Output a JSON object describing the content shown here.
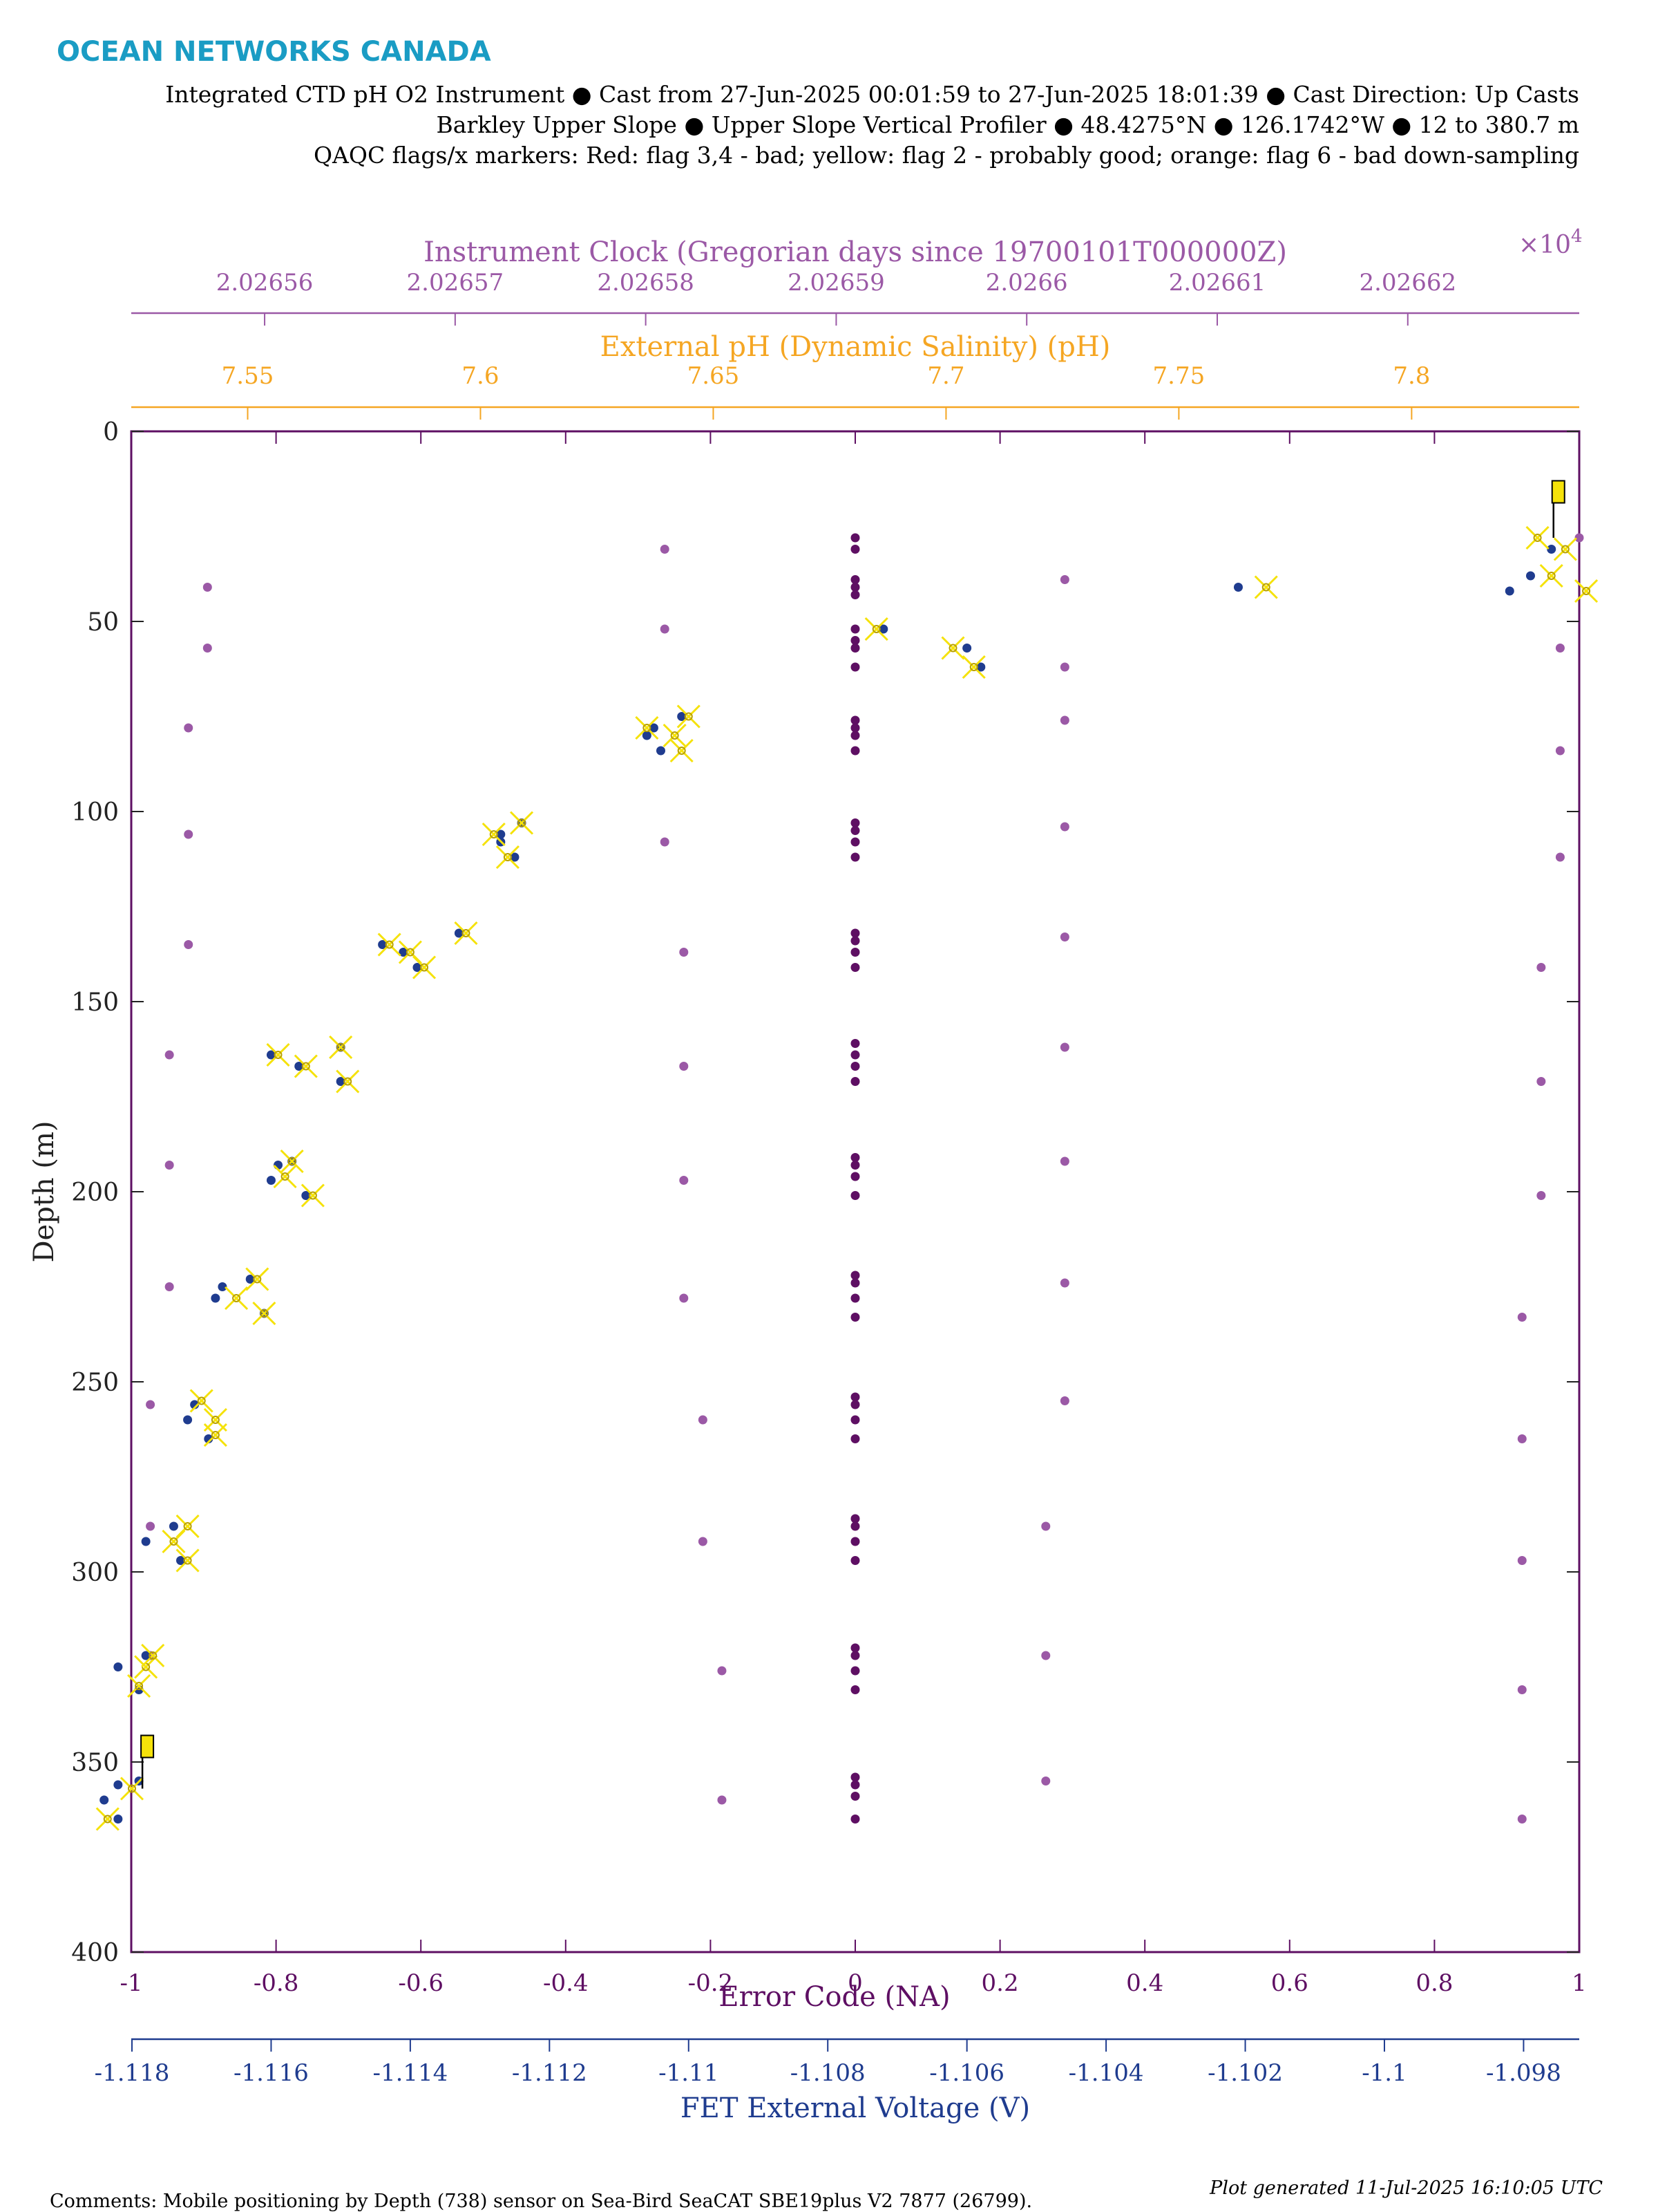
{
  "header": {
    "brand": "OCEAN NETWORKS CANADA",
    "line1": "Integrated CTD pH O2 Instrument ● Cast from 27-Jun-2025 00:01:59 to 27-Jun-2025 18:01:39 ● Cast Direction: Up Casts",
    "line2": "Barkley Upper Slope ● Upper Slope Vertical Profiler ● 48.4275°N ● 126.1742°W ● 12 to 380.7 m",
    "line3": "QAQC flags/x markers: Red: flag 3,4 - bad; yellow: flag 2 - probably good; orange: flag 6 - bad down-sampling"
  },
  "footer": {
    "comments": "Comments: Mobile positioning by Depth (738) sensor on Sea-Bird SeaCAT SBE19plus V2 7877 (26799).",
    "generated": "Plot generated 11-Jul-2025 16:10:05 UTC"
  },
  "colors": {
    "clock": "#9b59a6",
    "ph": "#f5a623",
    "error": "#5e0f63",
    "fet": "#1f3c8f",
    "flag_yellow": "#f5e20a",
    "brand": "#1a9cc4"
  },
  "chart_data": {
    "type": "scatter",
    "y_axis": {
      "label": "Depth (m)",
      "range": [
        0,
        400
      ],
      "reversed": true,
      "ticks": [
        0,
        50,
        100,
        150,
        200,
        250,
        300,
        350,
        400
      ]
    },
    "axes": {
      "clock": {
        "label": "Instrument Clock (Gregorian days since 19700101T000000Z)",
        "multiplier": "×10",
        "multiplier_exp": "4",
        "range": [
          2.026553,
          2.026629
        ],
        "ticks": [
          2.02656,
          2.02657,
          2.02658,
          2.02659,
          2.0266,
          2.02661,
          2.02662
        ],
        "tick_labels": [
          "2.02656",
          "2.02657",
          "2.02658",
          "2.02659",
          "2.0266",
          "2.02661",
          "2.02662"
        ]
      },
      "ph": {
        "label": "External pH (Dynamic Salinity) (pH)",
        "range": [
          7.525,
          7.836
        ],
        "ticks": [
          7.55,
          7.6,
          7.65,
          7.7,
          7.75,
          7.8
        ],
        "tick_labels": [
          "7.55",
          "7.6",
          "7.65",
          "7.7",
          "7.75",
          "7.8"
        ]
      },
      "error": {
        "label": "Error Code (NA)",
        "range": [
          -1,
          1
        ],
        "ticks": [
          -1,
          -0.8,
          -0.6,
          -0.4,
          -0.2,
          0,
          0.2,
          0.4,
          0.6,
          0.8,
          1
        ],
        "tick_labels": [
          "-1",
          "-0.8",
          "-0.6",
          "-0.4",
          "-0.2",
          "0",
          "0.2",
          "0.4",
          "0.6",
          "0.8",
          "1"
        ]
      },
      "fet": {
        "label": "FET External Voltage (V)",
        "range": [
          -1.11801,
          -1.0972
        ],
        "ticks": [
          -1.118,
          -1.116,
          -1.114,
          -1.112,
          -1.11,
          -1.108,
          -1.106,
          -1.104,
          -1.102,
          -1.1,
          -1.098
        ],
        "tick_labels": [
          "-1.118",
          "-1.116",
          "-1.114",
          "-1.112",
          "-1.11",
          "-1.108",
          "-1.106",
          "-1.104",
          "-1.102",
          "-1.1",
          "-1.098"
        ]
      }
    },
    "series": [
      {
        "name": "Instrument Clock",
        "axis": "clock",
        "points": [
          [
            2.026554,
            322
          ],
          [
            2.026554,
            288
          ],
          [
            2.026554,
            256
          ],
          [
            2.026555,
            225
          ],
          [
            2.026555,
            193
          ],
          [
            2.026555,
            164
          ],
          [
            2.026556,
            135
          ],
          [
            2.026556,
            106
          ],
          [
            2.026556,
            78
          ],
          [
            2.026557,
            57
          ],
          [
            2.026557,
            41
          ],
          [
            2.026581,
            31
          ],
          [
            2.026581,
            52
          ],
          [
            2.026581,
            108
          ],
          [
            2.026582,
            137
          ],
          [
            2.026582,
            167
          ],
          [
            2.026582,
            197
          ],
          [
            2.026582,
            228
          ],
          [
            2.026583,
            260
          ],
          [
            2.026583,
            292
          ],
          [
            2.026584,
            326
          ],
          [
            2.026584,
            360
          ],
          [
            2.026602,
            39
          ],
          [
            2.026602,
            62
          ],
          [
            2.026602,
            76
          ],
          [
            2.026602,
            104
          ],
          [
            2.026602,
            133
          ],
          [
            2.026602,
            162
          ],
          [
            2.026602,
            192
          ],
          [
            2.026602,
            224
          ],
          [
            2.026602,
            255
          ],
          [
            2.026601,
            288
          ],
          [
            2.026601,
            322
          ],
          [
            2.026601,
            355
          ],
          [
            2.026629,
            28
          ],
          [
            2.026628,
            57
          ],
          [
            2.026628,
            84
          ],
          [
            2.026628,
            112
          ],
          [
            2.026627,
            141
          ],
          [
            2.026627,
            171
          ],
          [
            2.026627,
            201
          ],
          [
            2.026626,
            233
          ],
          [
            2.026626,
            265
          ],
          [
            2.026626,
            297
          ],
          [
            2.026626,
            331
          ],
          [
            2.026626,
            365
          ]
        ]
      },
      {
        "name": "Error Code",
        "axis": "error",
        "points": [
          [
            0,
            28
          ],
          [
            0,
            31
          ],
          [
            0,
            39
          ],
          [
            0,
            41
          ],
          [
            0,
            43
          ],
          [
            0,
            52
          ],
          [
            0,
            55
          ],
          [
            0,
            57
          ],
          [
            0,
            62
          ],
          [
            0,
            76
          ],
          [
            0,
            78
          ],
          [
            0,
            80
          ],
          [
            0,
            84
          ],
          [
            0,
            103
          ],
          [
            0,
            105
          ],
          [
            0,
            108
          ],
          [
            0,
            112
          ],
          [
            0,
            132
          ],
          [
            0,
            134
          ],
          [
            0,
            137
          ],
          [
            0,
            141
          ],
          [
            0,
            161
          ],
          [
            0,
            164
          ],
          [
            0,
            167
          ],
          [
            0,
            171
          ],
          [
            0,
            191
          ],
          [
            0,
            193
          ],
          [
            0,
            196
          ],
          [
            0,
            201
          ],
          [
            0,
            222
          ],
          [
            0,
            224
          ],
          [
            0,
            228
          ],
          [
            0,
            233
          ],
          [
            0,
            254
          ],
          [
            0,
            256
          ],
          [
            0,
            260
          ],
          [
            0,
            265
          ],
          [
            0,
            286
          ],
          [
            0,
            288
          ],
          [
            0,
            292
          ],
          [
            0,
            297
          ],
          [
            0,
            320
          ],
          [
            0,
            322
          ],
          [
            0,
            326
          ],
          [
            0,
            331
          ],
          [
            0,
            354
          ],
          [
            0,
            356
          ],
          [
            0,
            359
          ],
          [
            0,
            365
          ]
        ]
      },
      {
        "name": "FET External Voltage",
        "axis": "fet",
        "points": [
          [
            -1.1184,
            360
          ],
          [
            -1.1182,
            356
          ],
          [
            -1.1182,
            365
          ],
          [
            -1.1179,
            355
          ],
          [
            -1.1182,
            325
          ],
          [
            -1.1178,
            322
          ],
          [
            -1.1179,
            331
          ],
          [
            -1.1174,
            288
          ],
          [
            -1.1178,
            292
          ],
          [
            -1.1173,
            297
          ],
          [
            -1.1171,
            256
          ],
          [
            -1.1172,
            260
          ],
          [
            -1.1169,
            265
          ],
          [
            -1.1167,
            225
          ],
          [
            -1.1163,
            223
          ],
          [
            -1.1168,
            228
          ],
          [
            -1.1161,
            232
          ],
          [
            -1.1159,
            193
          ],
          [
            -1.116,
            197
          ],
          [
            -1.1157,
            192
          ],
          [
            -1.1155,
            201
          ],
          [
            -1.116,
            164
          ],
          [
            -1.1156,
            167
          ],
          [
            -1.115,
            162
          ],
          [
            -1.115,
            171
          ],
          [
            -1.1144,
            135
          ],
          [
            -1.1141,
            137
          ],
          [
            -1.1139,
            141
          ],
          [
            -1.1133,
            132
          ],
          [
            -1.1127,
            106
          ],
          [
            -1.1127,
            108
          ],
          [
            -1.1125,
            112
          ],
          [
            -1.1124,
            103
          ],
          [
            -1.1106,
            80
          ],
          [
            -1.1105,
            78
          ],
          [
            -1.1104,
            84
          ],
          [
            -1.1101,
            75
          ],
          [
            -1.1072,
            52
          ],
          [
            -1.106,
            57
          ],
          [
            -1.1058,
            62
          ],
          [
            -1.1021,
            41
          ],
          [
            -1.0982,
            42
          ],
          [
            -1.0979,
            38
          ],
          [
            -1.0976,
            31
          ]
        ]
      }
    ],
    "flags": {
      "type": "flag 2 - probably good",
      "color": "yellow",
      "markers_fet": [
        [
          -1.11835,
          365
        ],
        [
          -1.118,
          357
        ],
        [
          -1.1179,
          330
        ],
        [
          -1.1178,
          325
        ],
        [
          -1.1177,
          322
        ],
        [
          -1.1172,
          288
        ],
        [
          -1.1174,
          292
        ],
        [
          -1.1172,
          297
        ],
        [
          -1.117,
          255
        ],
        [
          -1.1168,
          260
        ],
        [
          -1.1168,
          264
        ],
        [
          -1.1165,
          228
        ],
        [
          -1.1162,
          223
        ],
        [
          -1.1161,
          232
        ],
        [
          -1.1158,
          196
        ],
        [
          -1.1157,
          192
        ],
        [
          -1.1154,
          201
        ],
        [
          -1.1159,
          164
        ],
        [
          -1.1155,
          167
        ],
        [
          -1.115,
          162
        ],
        [
          -1.1149,
          171
        ],
        [
          -1.1143,
          135
        ],
        [
          -1.114,
          137
        ],
        [
          -1.1138,
          141
        ],
        [
          -1.1132,
          132
        ],
        [
          -1.1128,
          106
        ],
        [
          -1.1126,
          112
        ],
        [
          -1.1124,
          103
        ],
        [
          -1.1102,
          80
        ],
        [
          -1.1101,
          84
        ],
        [
          -1.11,
          75
        ],
        [
          -1.1106,
          78
        ],
        [
          -1.1073,
          52
        ],
        [
          -1.1062,
          57
        ],
        [
          -1.1059,
          62
        ],
        [
          -1.1017,
          41
        ],
        [
          -1.0976,
          38
        ],
        [
          -1.0978,
          28
        ],
        [
          -1.0974,
          31
        ],
        [
          -1.0971,
          42
        ]
      ],
      "flag_pins_fet": [
        [
          -1.11785,
          343,
          357
        ],
        [
          -1.09757,
          13,
          28
        ]
      ]
    }
  }
}
